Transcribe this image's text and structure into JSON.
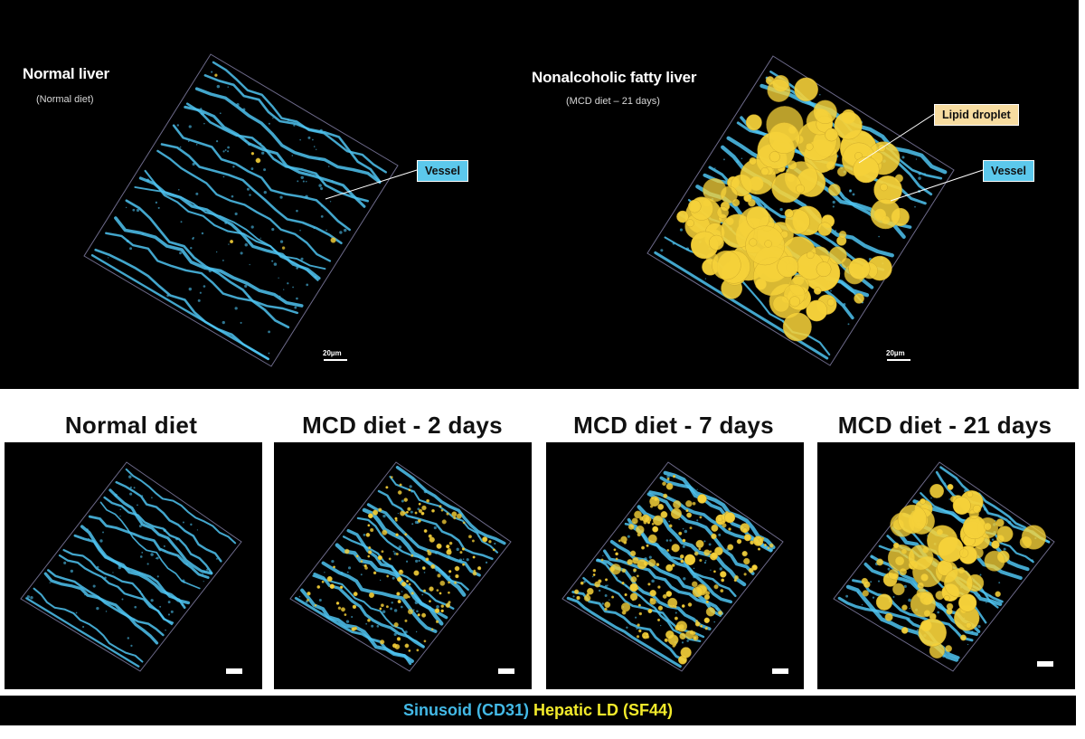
{
  "top": {
    "left": {
      "title": "Normal liver",
      "subtitle": "(Normal diet)",
      "callout": "Vessel",
      "scale": "20µm"
    },
    "right": {
      "title": "Nonalcoholic fatty liver",
      "subtitle": "(MCD diet – 21 days)",
      "callout_lipid": "Lipid droplet",
      "callout_vessel": "Vessel",
      "scale": "20µm"
    }
  },
  "panels": [
    {
      "title": "Normal diet",
      "droplet_density": 0.0
    },
    {
      "title": "MCD diet - 2 days",
      "droplet_density": 0.45
    },
    {
      "title": "MCD diet - 7 days",
      "droplet_density": 0.6
    },
    {
      "title": "MCD diet - 21 days",
      "droplet_density": 1.0
    }
  ],
  "legend": {
    "sinusoid": "Sinusoid (CD31)",
    "lipid": "Hepatic LD (SF44)"
  },
  "colors": {
    "vessel": "#4fc3f0",
    "lipid": "#f6d23a",
    "background": "#000000"
  }
}
